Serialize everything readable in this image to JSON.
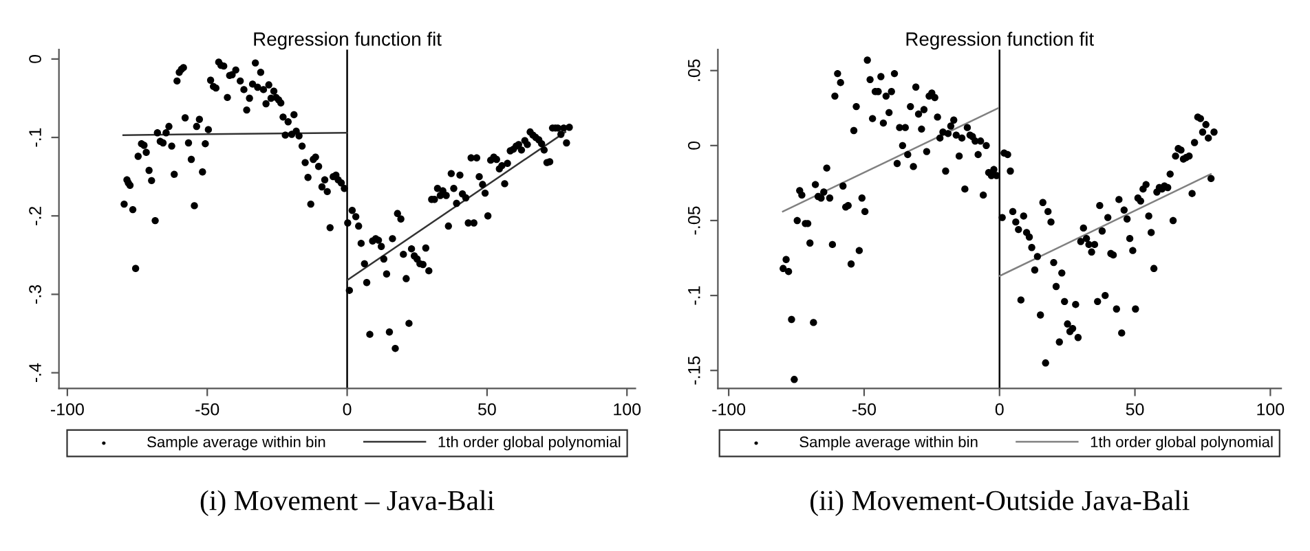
{
  "chart_data": [
    {
      "type": "scatter",
      "title": "Regression function fit",
      "annotations": [
        "(i) Movement – Java-Bali"
      ],
      "xlim": [
        -103,
        103
      ],
      "ylim": [
        -0.42,
        0.012
      ],
      "xticks": [
        -100,
        -50,
        0,
        50,
        100
      ],
      "yticks": [
        {
          "value": 0,
          "label": "0"
        },
        {
          "value": -0.1,
          "label": "-.1"
        },
        {
          "value": -0.2,
          "label": "-.2"
        },
        {
          "value": -0.3,
          "label": "-.3"
        },
        {
          "value": -0.4,
          "label": "-.4"
        }
      ],
      "grid": false,
      "legend": "bottom",
      "marker": "circle",
      "ref_lines": [
        {
          "axis": "x",
          "value": 0,
          "color": "#000000"
        }
      ],
      "series": [
        {
          "name": "Sample average within bin",
          "color": "#000000",
          "x": [
            -79.7,
            -78.7,
            -78.2,
            -77.6,
            -76.6,
            -75.6,
            -74.7,
            -73.5,
            -72.6,
            -71.8,
            -70.8,
            -69.9,
            -68.6,
            -67.8,
            -66.8,
            -65.8,
            -64.7,
            -63.7,
            -62.7,
            -61.8,
            -60.8,
            -60,
            -59.2,
            -58.5,
            -57.9,
            -56.7,
            -55.7,
            -54.6,
            -53.8,
            -52.8,
            -51.7,
            -50.7,
            -49.6,
            -48.8,
            -47.8,
            -46.9,
            -45.9,
            -45.1,
            -44.1,
            -42.8,
            -42,
            -41.1,
            -39.8,
            -38.2,
            -36.9,
            -35.9,
            -34.9,
            -33.8,
            -32.8,
            -32,
            -30.9,
            -29.9,
            -29,
            -28,
            -27.2,
            -26.2,
            -25.4,
            -24.5,
            -23.7,
            -22.9,
            -22.1,
            -21.1,
            -19.8,
            -19,
            -18.2,
            -17.2,
            -16.1,
            -15,
            -14,
            -13,
            -12.1,
            -11.3,
            -10.2,
            -9,
            -8,
            -7.1,
            -6.1,
            -5,
            -4,
            -3.2,
            -2.1,
            -1,
            0.2,
            0.8,
            1.8,
            3.1,
            4.1,
            5,
            6.2,
            7,
            8.1,
            9.1,
            10.2,
            11.2,
            12.2,
            13.1,
            14.1,
            15.1,
            16.2,
            17.2,
            18,
            19.2,
            20.1,
            21.1,
            22.1,
            23,
            24,
            25,
            26,
            27.1,
            28.1,
            29.2,
            30.2,
            31.2,
            32.3,
            33.3,
            34.2,
            35.4,
            36.2,
            37.2,
            38.1,
            39.1,
            40.3,
            41.2,
            42.4,
            43.3,
            44.3,
            45.3,
            46.3,
            47.2,
            48.4,
            49.3,
            50.3,
            51.3,
            52.4,
            53.4,
            54.4,
            55.3,
            56.3,
            57.3,
            58.3,
            59.4,
            60.4,
            61.3,
            62.3,
            63.5,
            64.4,
            65.4,
            66.4,
            67.4,
            68.5,
            69.5,
            70.4,
            71.4,
            72.4,
            73.4,
            74.4,
            75.3,
            76.4,
            77.4,
            78.4,
            79.4
          ],
          "values": [
            -0.185,
            -0.154,
            -0.158,
            -0.161,
            -0.192,
            -0.267,
            -0.124,
            -0.108,
            -0.11,
            -0.119,
            -0.142,
            -0.155,
            -0.206,
            -0.094,
            -0.105,
            -0.107,
            -0.094,
            -0.086,
            -0.111,
            -0.147,
            -0.028,
            -0.017,
            -0.013,
            -0.011,
            -0.075,
            -0.107,
            -0.128,
            -0.187,
            -0.086,
            -0.077,
            -0.144,
            -0.108,
            -0.09,
            -0.027,
            -0.035,
            -0.037,
            -0.004,
            -0.008,
            -0.009,
            -0.049,
            -0.021,
            -0.02,
            -0.014,
            -0.028,
            -0.039,
            -0.065,
            -0.05,
            -0.032,
            -0.005,
            -0.036,
            -0.017,
            -0.039,
            -0.057,
            -0.033,
            -0.05,
            -0.041,
            -0.049,
            -0.052,
            -0.056,
            -0.074,
            -0.097,
            -0.08,
            -0.096,
            -0.071,
            -0.092,
            -0.098,
            -0.111,
            -0.132,
            -0.151,
            -0.185,
            -0.128,
            -0.125,
            -0.137,
            -0.163,
            -0.154,
            -0.169,
            -0.215,
            -0.15,
            -0.148,
            -0.154,
            -0.158,
            -0.165,
            -0.209,
            -0.295,
            -0.193,
            -0.201,
            -0.213,
            -0.235,
            -0.261,
            -0.285,
            -0.351,
            -0.232,
            -0.229,
            -0.231,
            -0.239,
            -0.255,
            -0.274,
            -0.348,
            -0.229,
            -0.369,
            -0.197,
            -0.204,
            -0.249,
            -0.28,
            -0.337,
            -0.242,
            -0.251,
            -0.255,
            -0.261,
            -0.262,
            -0.241,
            -0.27,
            -0.179,
            -0.179,
            -0.165,
            -0.174,
            -0.168,
            -0.174,
            -0.213,
            -0.146,
            -0.165,
            -0.184,
            -0.148,
            -0.172,
            -0.177,
            -0.209,
            -0.126,
            -0.209,
            -0.126,
            -0.15,
            -0.16,
            -0.171,
            -0.2,
            -0.129,
            -0.125,
            -0.128,
            -0.14,
            -0.136,
            -0.159,
            -0.133,
            -0.117,
            -0.115,
            -0.111,
            -0.109,
            -0.116,
            -0.104,
            -0.109,
            -0.093,
            -0.097,
            -0.1,
            -0.103,
            -0.108,
            -0.116,
            -0.132,
            -0.131,
            -0.088,
            -0.088,
            -0.088,
            -0.096,
            -0.088,
            -0.107,
            -0.087
          ]
        },
        {
          "name": "1th order global polynomial",
          "type": "line",
          "color": "#333333",
          "marker": "none",
          "x": [
            -80,
            0
          ],
          "values": [
            -0.097,
            -0.094
          ]
        },
        {
          "type": "line",
          "color": "#333333",
          "marker": "none",
          "x": [
            0,
            78
          ],
          "values": [
            -0.282,
            -0.093
          ]
        }
      ]
    },
    {
      "type": "scatter",
      "title": "Regression function fit",
      "annotations": [
        "(ii) Movement-Outside Java-Bali"
      ],
      "xlim": [
        -104,
        104
      ],
      "ylim": [
        -0.162,
        0.064
      ],
      "xticks": [
        -100,
        -50,
        0,
        50,
        100
      ],
      "yticks": [
        {
          "value": 0.05,
          "label": ".05"
        },
        {
          "value": 0,
          "label": "0"
        },
        {
          "value": -0.05,
          "label": "-.05"
        },
        {
          "value": -0.1,
          "label": "-.1"
        },
        {
          "value": -0.15,
          "label": "-.15"
        }
      ],
      "grid": false,
      "legend": "bottom",
      "marker": "circle",
      "ref_lines": [
        {
          "axis": "x",
          "value": 0,
          "color": "#000000"
        }
      ],
      "series": [
        {
          "name": "Sample average within bin",
          "color": "#000000",
          "x": [
            -79.9,
            -78.8,
            -77.9,
            -76.8,
            -75.8,
            -74.7,
            -73.8,
            -73,
            -71.7,
            -70.8,
            -70,
            -68.7,
            -68,
            -67,
            -65.9,
            -64.9,
            -63.8,
            -62.7,
            -61.7,
            -60.8,
            -59.8,
            -58.7,
            -57.8,
            -56.8,
            -55.9,
            -54.8,
            -53.8,
            -52.9,
            -51.8,
            -50.8,
            -49.7,
            -48.8,
            -47.8,
            -46.9,
            -45.9,
            -44.8,
            -43.8,
            -42.9,
            -41.9,
            -40.8,
            -39.9,
            -38.8,
            -37.8,
            -36.9,
            -35.8,
            -34.8,
            -33.9,
            -32.9,
            -31.8,
            -30.9,
            -29.9,
            -28.8,
            -27.9,
            -26.9,
            -26,
            -25,
            -23.9,
            -22.9,
            -22,
            -20.9,
            -19.9,
            -19,
            -18,
            -16.9,
            -16,
            -14.9,
            -13.9,
            -12.8,
            -11.9,
            -10.9,
            -10,
            -9,
            -7.9,
            -7,
            -6,
            -4.9,
            -4,
            -3,
            -2.1,
            -1.1,
            1,
            1.7,
            3,
            4,
            4.9,
            6,
            7,
            7.9,
            8.9,
            10,
            11,
            11.9,
            13,
            14,
            15.1,
            16,
            17,
            17.9,
            19,
            20,
            20.9,
            22.1,
            23,
            24,
            25.1,
            26,
            27,
            28.1,
            29,
            30,
            31,
            32.1,
            33,
            34,
            35.1,
            36.2,
            37,
            37.9,
            39,
            40,
            41.1,
            42,
            43.2,
            44.1,
            45.1,
            46,
            47.1,
            48.1,
            49.2,
            50.2,
            51.1,
            52.1,
            53,
            54.1,
            55.1,
            56,
            57,
            58.1,
            59,
            60,
            60.9,
            62.1,
            63,
            64.1,
            65,
            66,
            67,
            67.9,
            68.9,
            70,
            71.1,
            72,
            73.2,
            74.2,
            75,
            76.2,
            77.1,
            78.1,
            79.2
          ],
          "values": [
            -0.082,
            -0.076,
            -0.084,
            -0.116,
            -0.156,
            -0.05,
            -0.03,
            -0.033,
            -0.052,
            -0.052,
            -0.065,
            -0.118,
            -0.026,
            -0.034,
            -0.035,
            -0.031,
            -0.015,
            -0.035,
            -0.066,
            0.033,
            0.048,
            0.042,
            -0.027,
            -0.041,
            -0.04,
            -0.079,
            0.01,
            0.026,
            -0.07,
            -0.035,
            -0.044,
            0.057,
            0.044,
            0.018,
            0.036,
            0.036,
            0.046,
            0.015,
            0.033,
            0.022,
            0.036,
            0.048,
            -0.012,
            0.012,
            0.0,
            0.012,
            -0.006,
            0.026,
            -0.014,
            0.039,
            0.021,
            0.011,
            0.024,
            -0.004,
            0.033,
            0.035,
            0.032,
            0.019,
            0.005,
            0.009,
            -0.017,
            0.008,
            0.013,
            0.017,
            0.007,
            -0.007,
            0.005,
            -0.029,
            0.012,
            0.007,
            0.006,
            0.003,
            -0.006,
            0.003,
            -0.033,
            0.0,
            -0.018,
            -0.02,
            -0.016,
            -0.02,
            -0.048,
            -0.005,
            -0.006,
            -0.017,
            -0.044,
            -0.051,
            -0.056,
            -0.103,
            -0.047,
            -0.058,
            -0.061,
            -0.068,
            -0.083,
            -0.074,
            -0.113,
            -0.038,
            -0.145,
            -0.044,
            -0.051,
            -0.078,
            -0.094,
            -0.131,
            -0.085,
            -0.104,
            -0.119,
            -0.124,
            -0.122,
            -0.106,
            -0.128,
            -0.064,
            -0.055,
            -0.062,
            -0.066,
            -0.071,
            -0.066,
            -0.104,
            -0.04,
            -0.057,
            -0.1,
            -0.048,
            -0.072,
            -0.073,
            -0.109,
            -0.036,
            -0.125,
            -0.043,
            -0.049,
            -0.062,
            -0.07,
            -0.109,
            -0.035,
            -0.037,
            -0.029,
            -0.026,
            -0.047,
            -0.058,
            -0.082,
            -0.031,
            -0.028,
            -0.029,
            -0.027,
            -0.028,
            -0.019,
            -0.05,
            -0.007,
            -0.002,
            -0.003,
            -0.009,
            -0.008,
            -0.007,
            -0.032,
            0.002,
            0.019,
            0.018,
            0.009,
            0.014,
            0.005,
            -0.022,
            0.009
          ]
        },
        {
          "name": "1th order global polynomial",
          "type": "line",
          "color": "#808080",
          "marker": "none",
          "x": [
            -80,
            -0.5
          ],
          "values": [
            -0.044,
            0.025
          ]
        },
        {
          "type": "line",
          "color": "#808080",
          "marker": "none",
          "x": [
            0,
            78
          ],
          "values": [
            -0.087,
            -0.019
          ]
        }
      ]
    }
  ]
}
